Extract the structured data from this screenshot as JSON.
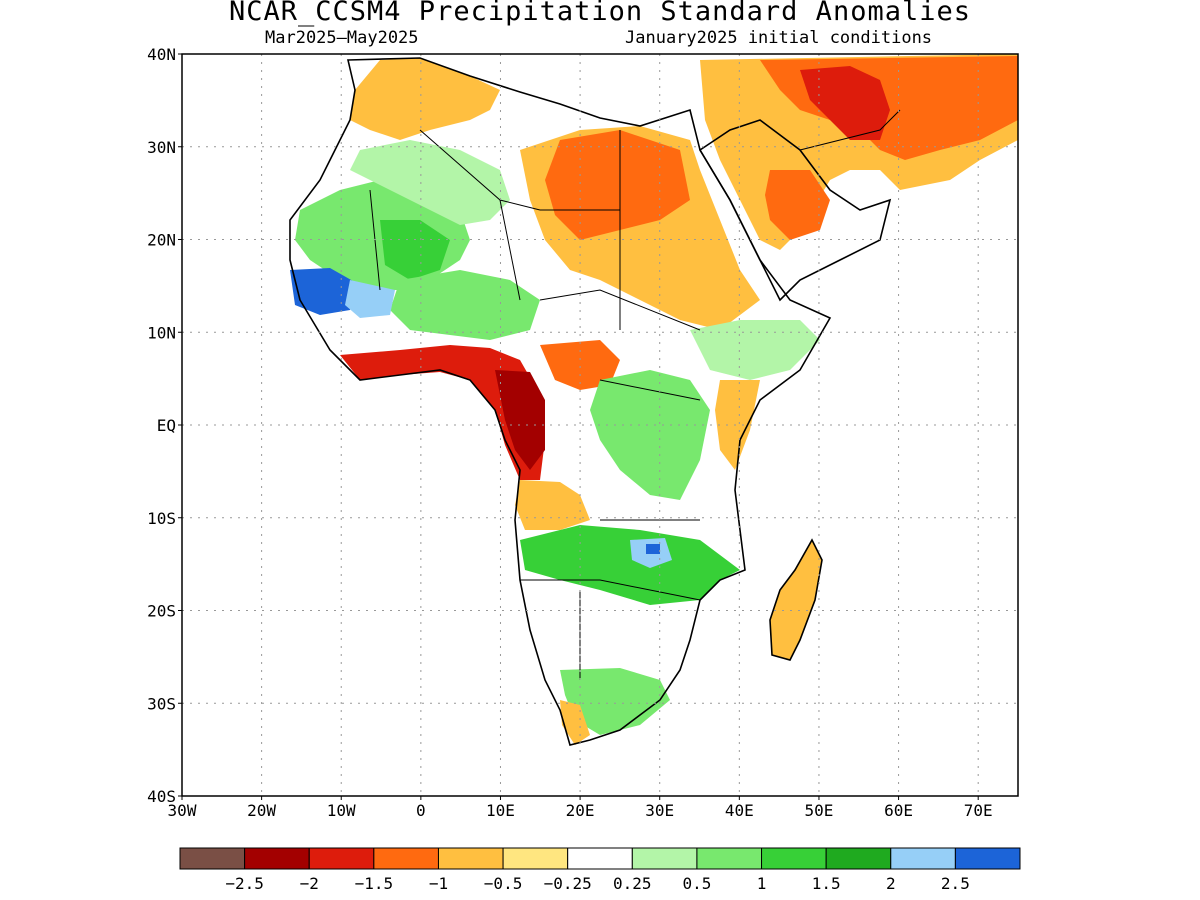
{
  "title": "NCAR_CCSM4 Precipitation Standard Anomalies",
  "subtitle_left": "Mar2025–May2025",
  "subtitle_right": "January2025 initial conditions",
  "lat_labels": [
    "40N",
    "30N",
    "20N",
    "10N",
    "EQ",
    "10S",
    "20S",
    "30S",
    "40S"
  ],
  "lon_labels": [
    "30W",
    "20W",
    "10W",
    "0",
    "10E",
    "20E",
    "30E",
    "40E",
    "50E",
    "60E",
    "70E"
  ],
  "colorbar": {
    "colors": [
      "#7a4f45",
      "#a30000",
      "#dd1c0c",
      "#ff6a10",
      "#ffbf40",
      "#ffe680",
      "#ffffff",
      "#b3f5a8",
      "#78e86e",
      "#37d037",
      "#1faa1f",
      "#96cff7",
      "#1c64d8"
    ],
    "labels": [
      "−2.5",
      "−2",
      "−1.5",
      "−1",
      "−0.5",
      "−0.25",
      "0.25",
      "0.5",
      "1",
      "1.5",
      "2",
      "2.5"
    ]
  },
  "domain": {
    "lon_min": -30,
    "lon_max": 75,
    "lat_min": -40,
    "lat_max": 40
  }
}
